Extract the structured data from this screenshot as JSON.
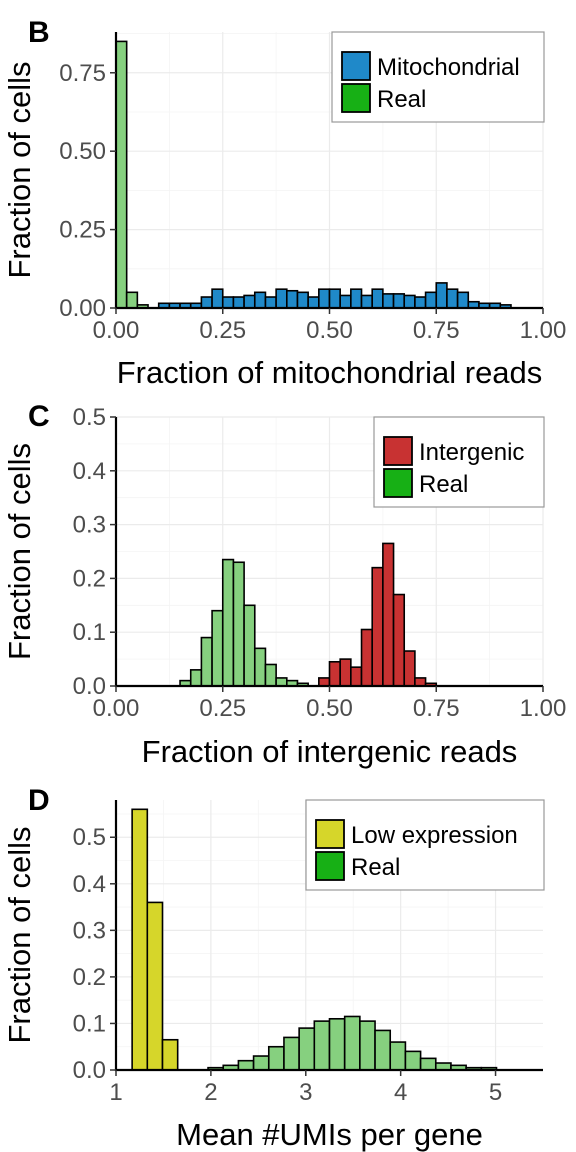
{
  "chart_data": [
    {
      "panel": "B",
      "type": "bar",
      "xlabel": "Fraction of mitochondrial reads",
      "ylabel": "Fraction of cells",
      "xlim": [
        0,
        1
      ],
      "ylim": [
        0,
        0.88
      ],
      "xticks": [
        0,
        0.25,
        0.5,
        0.75,
        1
      ],
      "xtick_labels": [
        "0.00",
        "0.25",
        "0.50",
        "0.75",
        "1.00"
      ],
      "yticks": [
        0,
        0.25,
        0.5,
        0.75
      ],
      "ytick_labels": [
        "0.00",
        "0.25",
        "0.50",
        "0.75"
      ],
      "grid": true,
      "legend_position": "top-right",
      "legend": [
        {
          "label": "Mitochondrial",
          "color": "#1f89c9"
        },
        {
          "label": "Real",
          "color": "#17b015"
        }
      ],
      "series": [
        {
          "name": "Mitochondrial",
          "color": "#1f89c9",
          "bins": [
            [
              0.1125,
              0.015
            ],
            [
              0.1375,
              0.015
            ],
            [
              0.1625,
              0.015
            ],
            [
              0.1875,
              0.015
            ],
            [
              0.2125,
              0.035
            ],
            [
              0.2375,
              0.06
            ],
            [
              0.2625,
              0.035
            ],
            [
              0.2875,
              0.035
            ],
            [
              0.3125,
              0.04
            ],
            [
              0.3375,
              0.05
            ],
            [
              0.3625,
              0.035
            ],
            [
              0.3875,
              0.06
            ],
            [
              0.4125,
              0.055
            ],
            [
              0.4375,
              0.05
            ],
            [
              0.4625,
              0.035
            ],
            [
              0.4875,
              0.06
            ],
            [
              0.5125,
              0.06
            ],
            [
              0.5375,
              0.04
            ],
            [
              0.5625,
              0.06
            ],
            [
              0.5875,
              0.04
            ],
            [
              0.6125,
              0.06
            ],
            [
              0.6375,
              0.045
            ],
            [
              0.6625,
              0.045
            ],
            [
              0.6875,
              0.04
            ],
            [
              0.7125,
              0.035
            ],
            [
              0.7375,
              0.05
            ],
            [
              0.7625,
              0.08
            ],
            [
              0.7875,
              0.06
            ],
            [
              0.8125,
              0.05
            ],
            [
              0.8375,
              0.02
            ],
            [
              0.8625,
              0.015
            ],
            [
              0.8875,
              0.015
            ],
            [
              0.9125,
              0.01
            ]
          ]
        },
        {
          "name": "Real",
          "color": "#86d07f",
          "bins": [
            [
              0.0125,
              0.85
            ],
            [
              0.0375,
              0.05
            ],
            [
              0.0625,
              0.01
            ]
          ]
        }
      ]
    },
    {
      "panel": "C",
      "type": "bar",
      "xlabel": "Fraction of intergenic reads",
      "ylabel": "Fraction of cells",
      "xlim": [
        0,
        1
      ],
      "ylim": [
        0,
        0.5
      ],
      "xticks": [
        0,
        0.25,
        0.5,
        0.75,
        1
      ],
      "xtick_labels": [
        "0.00",
        "0.25",
        "0.50",
        "0.75",
        "1.00"
      ],
      "yticks": [
        0,
        0.1,
        0.2,
        0.3,
        0.4,
        0.5
      ],
      "ytick_labels": [
        "0.0",
        "0.1",
        "0.2",
        "0.3",
        "0.4",
        "0.5"
      ],
      "grid": true,
      "legend_position": "top-right",
      "legend": [
        {
          "label": "Intergenic",
          "color": "#c83232"
        },
        {
          "label": "Real",
          "color": "#17b015"
        }
      ],
      "series": [
        {
          "name": "Intergenic",
          "color": "#c83232",
          "bins": [
            [
              0.4875,
              0.015
            ],
            [
              0.5125,
              0.045
            ],
            [
              0.5375,
              0.05
            ],
            [
              0.5625,
              0.035
            ],
            [
              0.5875,
              0.105
            ],
            [
              0.6125,
              0.22
            ],
            [
              0.6375,
              0.265
            ],
            [
              0.6625,
              0.17
            ],
            [
              0.6875,
              0.065
            ],
            [
              0.7125,
              0.015
            ],
            [
              0.7375,
              0.005
            ]
          ]
        },
        {
          "name": "Real",
          "color": "#86d07f",
          "bins": [
            [
              0.1625,
              0.01
            ],
            [
              0.1875,
              0.03
            ],
            [
              0.2125,
              0.09
            ],
            [
              0.2375,
              0.14
            ],
            [
              0.2625,
              0.235
            ],
            [
              0.2875,
              0.23
            ],
            [
              0.3125,
              0.15
            ],
            [
              0.3375,
              0.07
            ],
            [
              0.3625,
              0.04
            ],
            [
              0.3875,
              0.015
            ],
            [
              0.4125,
              0.01
            ],
            [
              0.4375,
              0.005
            ]
          ]
        }
      ]
    },
    {
      "panel": "D",
      "type": "bar",
      "xlabel": "Mean #UMIs per gene",
      "ylabel": "Fraction of cells",
      "xlim": [
        1,
        5.5
      ],
      "ylim": [
        0,
        0.58
      ],
      "xticks": [
        1,
        2,
        3,
        4,
        5
      ],
      "xtick_labels": [
        "1",
        "2",
        "3",
        "4",
        "5"
      ],
      "yticks": [
        0,
        0.1,
        0.2,
        0.3,
        0.4,
        0.5
      ],
      "ytick_labels": [
        "0.0",
        "0.1",
        "0.2",
        "0.3",
        "0.4",
        "0.5"
      ],
      "grid": true,
      "legend_position": "top-right",
      "legend": [
        {
          "label": "Low expression",
          "color": "#d6d62a"
        },
        {
          "label": "Real",
          "color": "#17b015"
        }
      ],
      "series": [
        {
          "name": "Low expression",
          "color": "#d6d62a",
          "bins": [
            [
              1.25,
              0.56
            ],
            [
              1.41,
              0.36
            ],
            [
              1.57,
              0.065
            ]
          ]
        },
        {
          "name": "Real",
          "color": "#86d07f",
          "bins": [
            [
              2.05,
              0.005
            ],
            [
              2.21,
              0.01
            ],
            [
              2.37,
              0.02
            ],
            [
              2.53,
              0.03
            ],
            [
              2.69,
              0.05
            ],
            [
              2.85,
              0.07
            ],
            [
              3.01,
              0.09
            ],
            [
              3.17,
              0.105
            ],
            [
              3.33,
              0.11
            ],
            [
              3.49,
              0.115
            ],
            [
              3.65,
              0.105
            ],
            [
              3.81,
              0.085
            ],
            [
              3.97,
              0.06
            ],
            [
              4.13,
              0.04
            ],
            [
              4.29,
              0.025
            ],
            [
              4.45,
              0.015
            ],
            [
              4.61,
              0.01
            ],
            [
              4.77,
              0.005
            ],
            [
              4.93,
              0.005
            ]
          ]
        }
      ]
    }
  ]
}
